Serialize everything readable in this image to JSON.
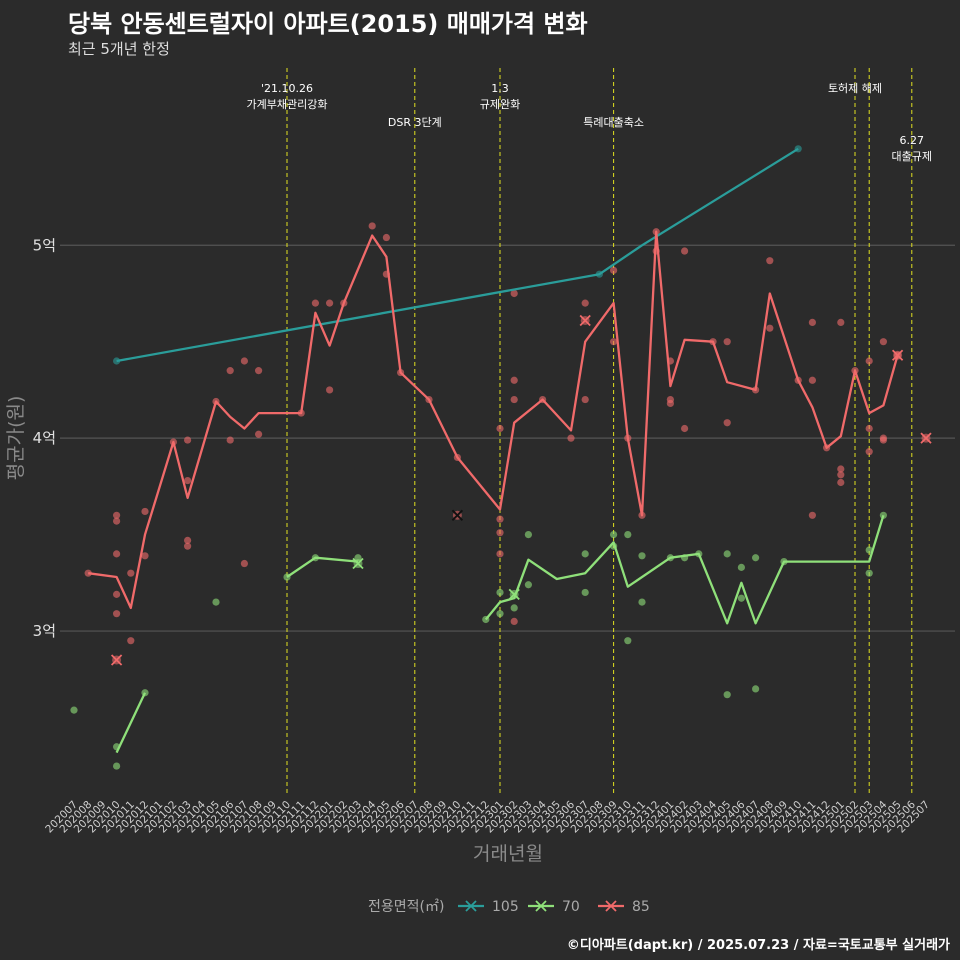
{
  "header": {
    "title": "당북 안동센트럴자이 아파트(2015) 매매가격 변화",
    "subtitle": "최근 5개년 한정"
  },
  "caption": "©디아파트(dapt.kr) / 2025.07.23 / 자료=국토교통부 실거래가",
  "colors": {
    "background": "#2b2b2b",
    "grid": "#555555",
    "event_line": "#e0e020",
    "series_105": "#2a9d9a",
    "series_70": "#8fe07a",
    "series_85": "#f06a6a"
  },
  "chart_data": {
    "type": "line",
    "xlabel": "거래년월",
    "ylabel": "평균가(원)",
    "x_categories": [
      "202007",
      "202008",
      "202009",
      "202010",
      "202011",
      "202012",
      "202101",
      "202102",
      "202103",
      "202104",
      "202105",
      "202106",
      "202107",
      "202108",
      "202109",
      "202110",
      "202111",
      "202112",
      "202201",
      "202202",
      "202203",
      "202204",
      "202205",
      "202206",
      "202207",
      "202208",
      "202209",
      "202210",
      "202211",
      "202212",
      "202301",
      "202302",
      "202303",
      "202304",
      "202305",
      "202306",
      "202307",
      "202308",
      "202309",
      "202310",
      "202311",
      "202312",
      "202401",
      "202402",
      "202403",
      "202404",
      "202405",
      "202406",
      "202407",
      "202408",
      "202409",
      "202410",
      "202411",
      "202412",
      "202501",
      "202502",
      "202503",
      "202504",
      "202505",
      "202506",
      "202507"
    ],
    "y_unit": "억",
    "y_ticks": [
      {
        "value": 3,
        "label": "3억"
      },
      {
        "value": 4,
        "label": "4억"
      },
      {
        "value": 5,
        "label": "5억"
      }
    ],
    "ylim": [
      2.15,
      5.95
    ],
    "grid": "horizontal",
    "legend": {
      "title": "전용면적(㎡)",
      "position": "bottom",
      "entries": [
        "105",
        "70",
        "85"
      ]
    },
    "events": [
      {
        "x": "202110",
        "label_lines": [
          "'21.10.26",
          "가계부채관리강화"
        ],
        "row": 0
      },
      {
        "x": "202207",
        "label_lines": [
          "DSR 3단계"
        ],
        "row": 1
      },
      {
        "x": "202301",
        "label_lines": [
          "1.3",
          "규제완화"
        ],
        "row": 0
      },
      {
        "x": "202309",
        "label_lines": [
          "특례대출축소"
        ],
        "row": 1
      },
      {
        "x": "202502",
        "label_lines": [
          "토허제 해제"
        ],
        "row": 0
      },
      {
        "x": "202503",
        "label_lines": [],
        "row": 0
      },
      {
        "x": "202506",
        "label_lines": [
          "6.27",
          "대출규제"
        ],
        "row": 2
      }
    ],
    "series": [
      {
        "name": "105",
        "line": [
          [
            "202010",
            4.4
          ],
          [
            "202308",
            4.85
          ],
          [
            "202311",
            5.0
          ],
          [
            "202410",
            5.5
          ]
        ],
        "points": [
          [
            "202010",
            4.4
          ],
          [
            "202308",
            4.85
          ],
          [
            "202410",
            5.5
          ]
        ],
        "x_markers": []
      },
      {
        "name": "70",
        "line_segments": [
          [
            [
              "202010",
              2.37
            ],
            [
              "202012",
              2.68
            ]
          ],
          [
            [
              "202110",
              3.28
            ],
            [
              "202112",
              3.38
            ],
            [
              "202203",
              3.36
            ]
          ],
          [
            [
              "202212",
              3.06
            ],
            [
              "202301",
              3.15
            ],
            [
              "202302",
              3.17
            ],
            [
              "202303",
              3.37
            ],
            [
              "202305",
              3.27
            ],
            [
              "202307",
              3.3
            ],
            [
              "202309",
              3.46
            ],
            [
              "202310",
              3.23
            ],
            [
              "202401",
              3.38
            ],
            [
              "202403",
              3.4
            ],
            [
              "202405",
              3.04
            ],
            [
              "202406",
              3.25
            ],
            [
              "202407",
              3.04
            ],
            [
              "202409",
              3.36
            ],
            [
              "202503",
              3.36
            ],
            [
              "202504",
              3.6
            ]
          ]
        ],
        "points": [
          [
            "202007",
            2.59
          ],
          [
            "202010",
            2.4
          ],
          [
            "202010",
            2.3
          ],
          [
            "202012",
            2.68
          ],
          [
            "202105",
            3.15
          ],
          [
            "202110",
            3.28
          ],
          [
            "202112",
            3.38
          ],
          [
            "202203",
            3.38
          ],
          [
            "202212",
            3.06
          ],
          [
            "202301",
            3.2
          ],
          [
            "202301",
            3.09
          ],
          [
            "202302",
            3.12
          ],
          [
            "202303",
            3.5
          ],
          [
            "202303",
            3.24
          ],
          [
            "202307",
            3.4
          ],
          [
            "202307",
            3.2
          ],
          [
            "202309",
            3.5
          ],
          [
            "202309",
            3.44
          ],
          [
            "202310",
            3.5
          ],
          [
            "202310",
            2.95
          ],
          [
            "202311",
            3.39
          ],
          [
            "202311",
            3.15
          ],
          [
            "202401",
            3.38
          ],
          [
            "202402",
            3.38
          ],
          [
            "202403",
            3.4
          ],
          [
            "202405",
            3.4
          ],
          [
            "202405",
            2.67
          ],
          [
            "202406",
            3.33
          ],
          [
            "202406",
            3.17
          ],
          [
            "202407",
            3.38
          ],
          [
            "202407",
            2.7
          ],
          [
            "202409",
            3.36
          ],
          [
            "202503",
            3.42
          ],
          [
            "202503",
            3.3
          ],
          [
            "202504",
            3.6
          ]
        ],
        "x_markers": [
          [
            "202203",
            3.35
          ],
          [
            "202302",
            3.19
          ]
        ]
      },
      {
        "name": "85",
        "line": [
          [
            "202008",
            3.3
          ],
          [
            "202010",
            3.28
          ],
          [
            "202011",
            3.12
          ],
          [
            "202012",
            3.5
          ],
          [
            "202102",
            3.98
          ],
          [
            "202103",
            3.69
          ],
          [
            "202105",
            4.19
          ],
          [
            "202106",
            4.11
          ],
          [
            "202107",
            4.05
          ],
          [
            "202108",
            4.13
          ],
          [
            "202111",
            4.13
          ],
          [
            "202112",
            4.65
          ],
          [
            "202201",
            4.48
          ],
          [
            "202202",
            4.7
          ],
          [
            "202204",
            5.05
          ],
          [
            "202205",
            4.94
          ],
          [
            "202206",
            4.34
          ],
          [
            "202208",
            4.2
          ],
          [
            "202210",
            3.9
          ],
          [
            "202301",
            3.63
          ],
          [
            "202302",
            4.08
          ],
          [
            "202304",
            4.2
          ],
          [
            "202306",
            4.04
          ],
          [
            "202307",
            4.5
          ],
          [
            "202309",
            4.7
          ],
          [
            "202310",
            4.0
          ],
          [
            "202311",
            3.6
          ],
          [
            "202312",
            5.07
          ],
          [
            "202401",
            4.27
          ],
          [
            "202402",
            4.51
          ],
          [
            "202404",
            4.5
          ],
          [
            "202405",
            4.29
          ],
          [
            "202407",
            4.25
          ],
          [
            "202408",
            4.75
          ],
          [
            "202410",
            4.3
          ],
          [
            "202411",
            4.16
          ],
          [
            "202412",
            3.95
          ],
          [
            "202501",
            4.01
          ],
          [
            "202502",
            4.35
          ],
          [
            "202503",
            4.13
          ],
          [
            "202504",
            4.17
          ],
          [
            "202505",
            4.43
          ]
        ],
        "points": [
          [
            "202008",
            3.3
          ],
          [
            "202010",
            3.6
          ],
          [
            "202010",
            3.57
          ],
          [
            "202010",
            3.4
          ],
          [
            "202010",
            3.19
          ],
          [
            "202010",
            3.09
          ],
          [
            "202011",
            3.3
          ],
          [
            "202011",
            2.95
          ],
          [
            "202012",
            3.62
          ],
          [
            "202012",
            3.39
          ],
          [
            "202102",
            3.98
          ],
          [
            "202103",
            3.99
          ],
          [
            "202103",
            3.78
          ],
          [
            "202103",
            3.47
          ],
          [
            "202103",
            3.44
          ],
          [
            "202105",
            4.19
          ],
          [
            "202106",
            4.35
          ],
          [
            "202106",
            3.99
          ],
          [
            "202107",
            4.4
          ],
          [
            "202107",
            3.35
          ],
          [
            "202108",
            4.35
          ],
          [
            "202108",
            4.02
          ],
          [
            "202111",
            4.13
          ],
          [
            "202112",
            4.7
          ],
          [
            "202201",
            4.7
          ],
          [
            "202201",
            4.25
          ],
          [
            "202202",
            4.7
          ],
          [
            "202204",
            5.1
          ],
          [
            "202205",
            5.04
          ],
          [
            "202205",
            4.85
          ],
          [
            "202206",
            4.34
          ],
          [
            "202208",
            4.2
          ],
          [
            "202210",
            3.9
          ],
          [
            "202301",
            4.05
          ],
          [
            "202301",
            3.58
          ],
          [
            "202301",
            3.51
          ],
          [
            "202301",
            3.4
          ],
          [
            "202302",
            4.75
          ],
          [
            "202302",
            4.3
          ],
          [
            "202302",
            4.2
          ],
          [
            "202302",
            3.05
          ],
          [
            "202304",
            4.2
          ],
          [
            "202306",
            4.0
          ],
          [
            "202307",
            4.7
          ],
          [
            "202307",
            4.2
          ],
          [
            "202309",
            4.87
          ],
          [
            "202309",
            4.5
          ],
          [
            "202310",
            4.0
          ],
          [
            "202311",
            3.6
          ],
          [
            "202312",
            5.07
          ],
          [
            "202312",
            4.97
          ],
          [
            "202401",
            4.4
          ],
          [
            "202401",
            4.2
          ],
          [
            "202401",
            4.18
          ],
          [
            "202402",
            4.97
          ],
          [
            "202402",
            4.05
          ],
          [
            "202404",
            4.5
          ],
          [
            "202405",
            4.5
          ],
          [
            "202405",
            4.08
          ],
          [
            "202407",
            4.25
          ],
          [
            "202408",
            4.92
          ],
          [
            "202408",
            4.57
          ],
          [
            "202410",
            4.3
          ],
          [
            "202411",
            4.6
          ],
          [
            "202411",
            4.3
          ],
          [
            "202411",
            3.6
          ],
          [
            "202412",
            3.95
          ],
          [
            "202501",
            4.6
          ],
          [
            "202501",
            3.84
          ],
          [
            "202501",
            3.81
          ],
          [
            "202501",
            3.77
          ],
          [
            "202502",
            4.35
          ],
          [
            "202503",
            4.4
          ],
          [
            "202503",
            4.05
          ],
          [
            "202503",
            3.93
          ],
          [
            "202504",
            4.5
          ],
          [
            "202504",
            4.0
          ],
          [
            "202504",
            3.99
          ],
          [
            "202505",
            4.43
          ]
        ],
        "x_markers": [
          [
            "202010",
            2.85
          ],
          [
            "202210",
            3.6
          ],
          [
            "202307",
            4.61
          ],
          [
            "202505",
            4.43
          ],
          [
            "202507",
            4.0
          ]
        ]
      }
    ]
  }
}
